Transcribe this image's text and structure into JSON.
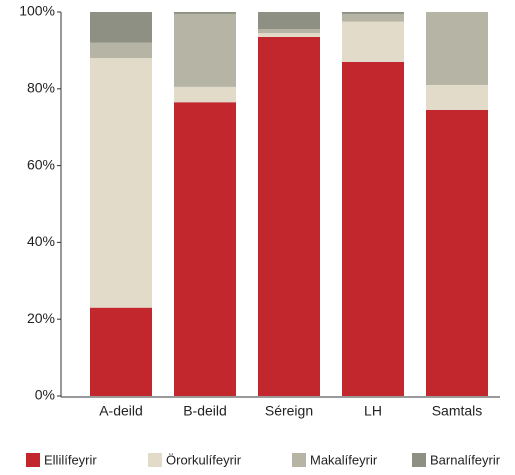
{
  "chart_data": {
    "type": "stacked_bar",
    "categories": [
      "A-deild",
      "B-deild",
      "Séreign",
      "LH",
      "Samtals"
    ],
    "series": [
      {
        "name": "Ellilífeyrir",
        "color": "#c1272d",
        "values": [
          23,
          76.5,
          93.5,
          87,
          74.5
        ]
      },
      {
        "name": "Örorkulífeyrir",
        "color": "#e2dbc9",
        "values": [
          65,
          4,
          1,
          10.5,
          6.5
        ]
      },
      {
        "name": "Makalífeyrir",
        "color": "#b6b4a4",
        "values": [
          4,
          19,
          1,
          2,
          19
        ]
      },
      {
        "name": "Barnalífeyrir",
        "color": "#8d9082",
        "values": [
          8,
          0.5,
          4.5,
          0.5,
          0
        ]
      }
    ],
    "ylim": [
      0,
      100
    ],
    "yticks": [
      {
        "value": 0,
        "label": "0%"
      },
      {
        "value": 20,
        "label": "20%"
      },
      {
        "value": 40,
        "label": "40%"
      },
      {
        "value": 60,
        "label": "60%"
      },
      {
        "value": 80,
        "label": "80%"
      },
      {
        "value": 100,
        "label": "100%"
      }
    ],
    "grid": false,
    "legend": "bottom"
  }
}
